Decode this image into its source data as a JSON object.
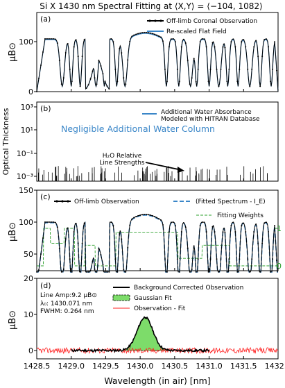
{
  "title": "Si X 1430 nm Spectral Fitting at ⟨X,Y⟩ = ⟨−104, 1082⟩",
  "xlabel": "Wavelength (in air) [nm]",
  "xticks": [
    "1428.5",
    "1429.0",
    "1429.5",
    "1430.0",
    "1430.5",
    "1431.0",
    "1431.5",
    "1432.0"
  ],
  "colors": {
    "observation": "#000000",
    "model": "#3a86c8",
    "weights": "#2ca02c",
    "residual": "#ff2020",
    "fill": "#7ddc6a"
  },
  "panel_a": {
    "label": "(a)",
    "ylabel": "μB⊙",
    "yticks": [
      "0",
      "100"
    ],
    "legend": [
      "Off-limb Coronal Observation",
      "Re-scaled Flat Field"
    ]
  },
  "panel_b": {
    "label": "(b)",
    "ylabel": "Optical Thickness",
    "yticks": [
      "10³",
      "10¹",
      "10⁻¹",
      "10⁻³"
    ],
    "legend_line1": "Additional Water Absorbance",
    "legend_line2": "Modeled with HITRAN Database",
    "note": "Negligible Additional Water Column",
    "annotation_line1": "H₂O Relative",
    "annotation_line2": "Line Strengths"
  },
  "panel_c": {
    "label": "(c)",
    "ylabel": "μB⊙",
    "yticks": [
      "50",
      "100",
      "150"
    ],
    "yticks_right": [
      "0",
      "1"
    ],
    "legend": [
      "Off-limb Observation",
      "(Fitted Spectrum - I_E)",
      "Fitting Weights"
    ]
  },
  "panel_d": {
    "label": "(d)",
    "ylabel": "μB⊙",
    "yticks": [
      "0",
      "10",
      "20"
    ],
    "info_line1": "Line Amp:9.2 μB⊙",
    "info_line2": "λ₀: 1430.071 nm",
    "info_line3": "FWHM: 0.264 nm",
    "legend": [
      "Background Corrected Observation",
      "Gaussian Fit",
      "Observation - Fit"
    ]
  },
  "chart_data": [
    {
      "panel": "a",
      "type": "line",
      "xlim": [
        1428.5,
        1432.0
      ],
      "ylim": [
        0,
        150
      ],
      "series": [
        {
          "name": "Off-limb Coronal Observation"
        },
        {
          "name": "Re-scaled Flat Field"
        }
      ],
      "absorption_lines_nm": [
        1428.87,
        1429.0,
        1429.13,
        1429.36,
        1429.48,
        1429.66,
        1429.78,
        1430.38,
        1430.56,
        1430.73,
        1430.82,
        1431.0,
        1431.14,
        1431.27,
        1431.42,
        1431.59,
        1431.74,
        1431.9
      ]
    },
    {
      "panel": "b",
      "type": "bar",
      "yscale": "log",
      "ylim": [
        0.001,
        1000
      ],
      "series": [
        {
          "name": "Additional Water Absorbance Modeled with HITRAN Database"
        }
      ]
    },
    {
      "panel": "c",
      "type": "line",
      "ylim": [
        20,
        150
      ],
      "y2lim": [
        -0.05,
        1.1
      ],
      "series": [
        {
          "name": "Off-limb Observation"
        },
        {
          "name": "(Fitted Spectrum - I_E)"
        },
        {
          "name": "Fitting Weights"
        }
      ]
    },
    {
      "panel": "d",
      "type": "line",
      "ylim": [
        -3,
        20
      ],
      "gaussian": {
        "amplitude": 9.2,
        "center": 1430.071,
        "fwhm": 0.264
      },
      "series": [
        {
          "name": "Background Corrected Observation"
        },
        {
          "name": "Gaussian Fit"
        },
        {
          "name": "Observation - Fit"
        }
      ]
    }
  ]
}
